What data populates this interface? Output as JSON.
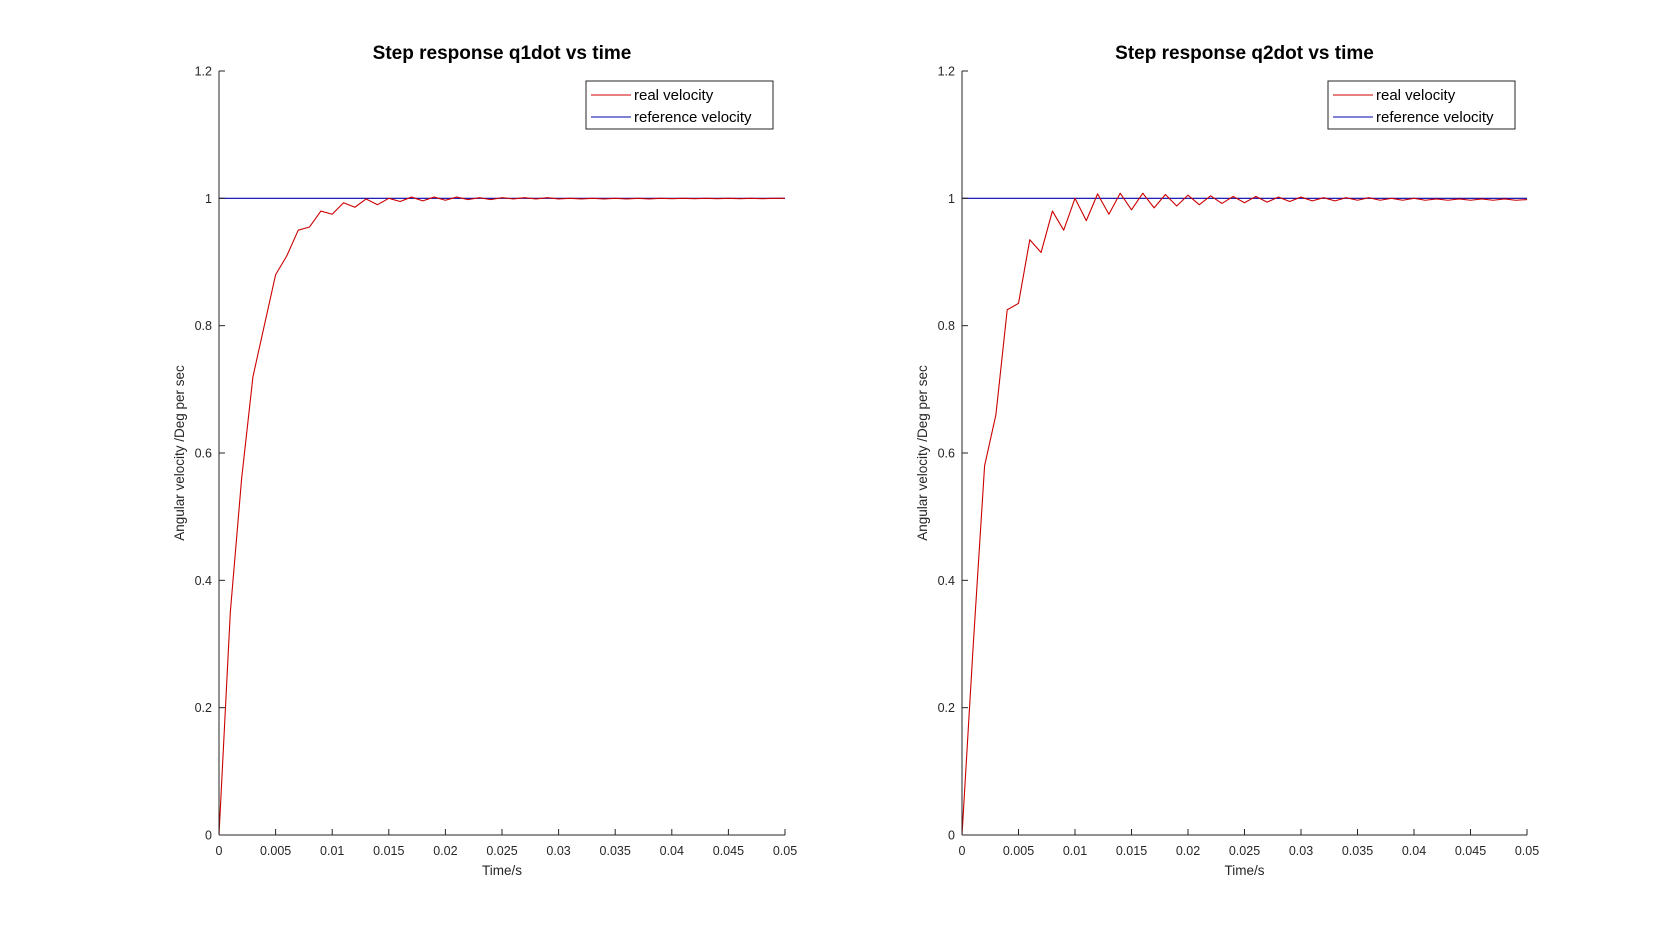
{
  "colors": {
    "real": "#cc0000",
    "reference": "#0000aa",
    "axis": "#262626",
    "background": "#ffffff"
  },
  "chart_data": [
    {
      "type": "line",
      "title": "Step response q1dot vs time",
      "xlabel": "Time/s",
      "ylabel": "Angular velocity /Deg per sec",
      "xlim": [
        0,
        0.05
      ],
      "ylim": [
        0,
        1.2
      ],
      "xticks": [
        0,
        0.005,
        0.01,
        0.015,
        0.02,
        0.025,
        0.03,
        0.035,
        0.04,
        0.045,
        0.05
      ],
      "xtick_labels": [
        "0",
        "0.005",
        "0.01",
        "0.015",
        "0.02",
        "0.025",
        "0.03",
        "0.035",
        "0.04",
        "0.045",
        "0.05"
      ],
      "yticks": [
        0,
        0.2,
        0.4,
        0.6,
        0.8,
        1,
        1.2
      ],
      "ytick_labels": [
        "0",
        "0.2",
        "0.4",
        "0.6",
        "0.8",
        "1",
        "1.2"
      ],
      "grid": false,
      "legend_position": "top-right",
      "series": [
        {
          "name": "real velocity",
          "color_key": "real",
          "x": [
            0,
            0.001,
            0.002,
            0.003,
            0.004,
            0.005,
            0.006,
            0.007,
            0.008,
            0.009,
            0.01,
            0.011,
            0.012,
            0.013,
            0.014,
            0.015,
            0.016,
            0.017,
            0.018,
            0.019,
            0.02,
            0.021,
            0.022,
            0.023,
            0.024,
            0.025,
            0.026,
            0.027,
            0.028,
            0.029,
            0.03,
            0.031,
            0.032,
            0.033,
            0.034,
            0.035,
            0.036,
            0.037,
            0.038,
            0.039,
            0.04,
            0.041,
            0.042,
            0.043,
            0.044,
            0.045,
            0.046,
            0.047,
            0.048,
            0.049,
            0.05
          ],
          "y": [
            0,
            0.35,
            0.56,
            0.72,
            0.8,
            0.88,
            0.91,
            0.95,
            0.955,
            0.98,
            0.975,
            0.993,
            0.986,
            0.999,
            0.99,
            1.0,
            0.995,
            1.002,
            0.996,
            1.002,
            0.997,
            1.002,
            0.998,
            1.001,
            0.998,
            1.001,
            0.999,
            1.001,
            0.999,
            1.001,
            0.999,
            1.0,
            0.999,
            1.0,
            0.999,
            1.0,
            0.999,
            1.0,
            0.999,
            1.0,
            0.9995,
            1.0,
            0.9995,
            1.0,
            0.9995,
            1.0,
            0.9995,
            1.0,
            0.9995,
            1.0,
            1.0
          ]
        },
        {
          "name": "reference velocity",
          "color_key": "reference",
          "x": [
            0,
            0.05
          ],
          "y": [
            1,
            1
          ]
        }
      ]
    },
    {
      "type": "line",
      "title": "Step response q2dot vs time",
      "xlabel": "Time/s",
      "ylabel": "Angular velocity /Deg per sec",
      "xlim": [
        0,
        0.05
      ],
      "ylim": [
        0,
        1.2
      ],
      "xticks": [
        0,
        0.005,
        0.01,
        0.015,
        0.02,
        0.025,
        0.03,
        0.035,
        0.04,
        0.045,
        0.05
      ],
      "xtick_labels": [
        "0",
        "0.005",
        "0.01",
        "0.015",
        "0.02",
        "0.025",
        "0.03",
        "0.035",
        "0.04",
        "0.045",
        "0.05"
      ],
      "yticks": [
        0,
        0.2,
        0.4,
        0.6,
        0.8,
        1,
        1.2
      ],
      "ytick_labels": [
        "0",
        "0.2",
        "0.4",
        "0.6",
        "0.8",
        "1",
        "1.2"
      ],
      "grid": false,
      "legend_position": "top-right",
      "series": [
        {
          "name": "real velocity",
          "color_key": "real",
          "x": [
            0,
            0.001,
            0.002,
            0.003,
            0.004,
            0.005,
            0.006,
            0.007,
            0.008,
            0.009,
            0.01,
            0.011,
            0.012,
            0.013,
            0.014,
            0.015,
            0.016,
            0.017,
            0.018,
            0.019,
            0.02,
            0.021,
            0.022,
            0.023,
            0.024,
            0.025,
            0.026,
            0.027,
            0.028,
            0.029,
            0.03,
            0.031,
            0.032,
            0.033,
            0.034,
            0.035,
            0.036,
            0.037,
            0.038,
            0.039,
            0.04,
            0.041,
            0.042,
            0.043,
            0.044,
            0.045,
            0.046,
            0.047,
            0.048,
            0.049,
            0.05
          ],
          "y": [
            0,
            0.3,
            0.58,
            0.66,
            0.825,
            0.835,
            0.935,
            0.915,
            0.98,
            0.95,
            1.0,
            0.965,
            1.007,
            0.975,
            1.008,
            0.982,
            1.008,
            0.985,
            1.006,
            0.988,
            1.005,
            0.99,
            1.004,
            0.992,
            1.003,
            0.993,
            1.003,
            0.994,
            1.002,
            0.995,
            1.002,
            0.996,
            1.001,
            0.996,
            1.001,
            0.997,
            1.001,
            0.997,
            1.0,
            0.997,
            1.0,
            0.997,
            0.999,
            0.997,
            0.999,
            0.997,
            0.999,
            0.997,
            0.999,
            0.997,
            0.998
          ]
        },
        {
          "name": "reference velocity",
          "color_key": "reference",
          "x": [
            0,
            0.05
          ],
          "y": [
            1,
            1
          ]
        }
      ]
    }
  ]
}
